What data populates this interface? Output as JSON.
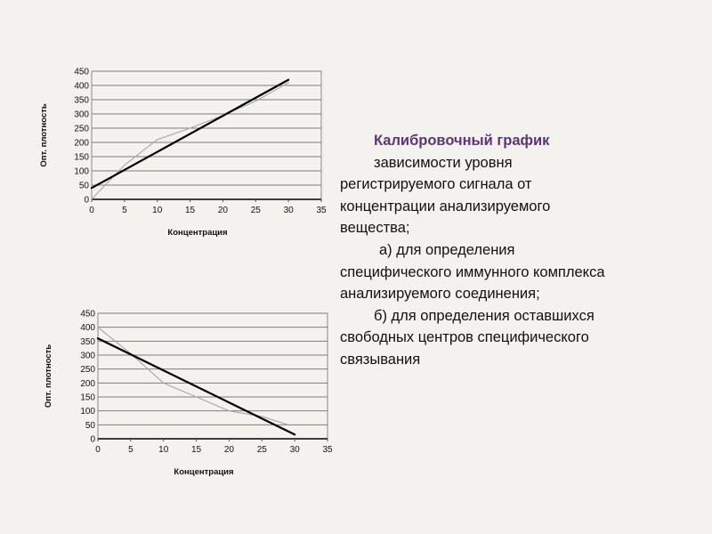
{
  "text": {
    "title": "Калибровочный график",
    "lines": [
      "зависимости уровня",
      "регистрируемого сигнала от",
      "концентрации анализируемого",
      "вещества;",
      "а) для определения",
      "специфического иммунного комплекса",
      "анализируемого соединения;",
      "б) для определения оставшихся",
      "свободных центров специфического",
      "связывания"
    ]
  },
  "chart_data": [
    {
      "type": "line",
      "xlabel": "Концентрация",
      "ylabel": "Опт. плотность",
      "xlim": [
        0,
        35
      ],
      "ylim": [
        0,
        450
      ],
      "xticks": [
        0,
        5,
        10,
        15,
        20,
        25,
        30,
        35
      ],
      "yticks": [
        0,
        50,
        100,
        150,
        200,
        250,
        300,
        350,
        400,
        450
      ],
      "grid": "horizontal",
      "legend": "none",
      "series": [
        {
          "style": "thin-gray",
          "color": "#a8a8a8",
          "x": [
            0,
            1,
            5,
            10,
            15,
            20,
            25,
            30
          ],
          "y": [
            0,
            25,
            120,
            210,
            250,
            295,
            345,
            410
          ]
        },
        {
          "style": "thick-black",
          "color": "#000000",
          "x": [
            0,
            30
          ],
          "y": [
            40,
            420
          ]
        }
      ]
    },
    {
      "type": "line",
      "xlabel": "Концентрация",
      "ylabel": "Опт. плотность",
      "xlim": [
        0,
        35
      ],
      "ylim": [
        0,
        450
      ],
      "xticks": [
        0,
        5,
        10,
        15,
        20,
        25,
        30,
        35
      ],
      "yticks": [
        0,
        50,
        100,
        150,
        200,
        250,
        300,
        350,
        400,
        450
      ],
      "grid": "horizontal",
      "legend": "none",
      "series": [
        {
          "style": "thin-gray",
          "color": "#a8a8a8",
          "x": [
            0,
            5,
            10,
            15,
            20,
            25,
            29
          ],
          "y": [
            400,
            305,
            200,
            150,
            100,
            80,
            50
          ]
        },
        {
          "style": "thick-black",
          "color": "#000000",
          "x": [
            0,
            30
          ],
          "y": [
            360,
            15
          ]
        }
      ]
    }
  ]
}
